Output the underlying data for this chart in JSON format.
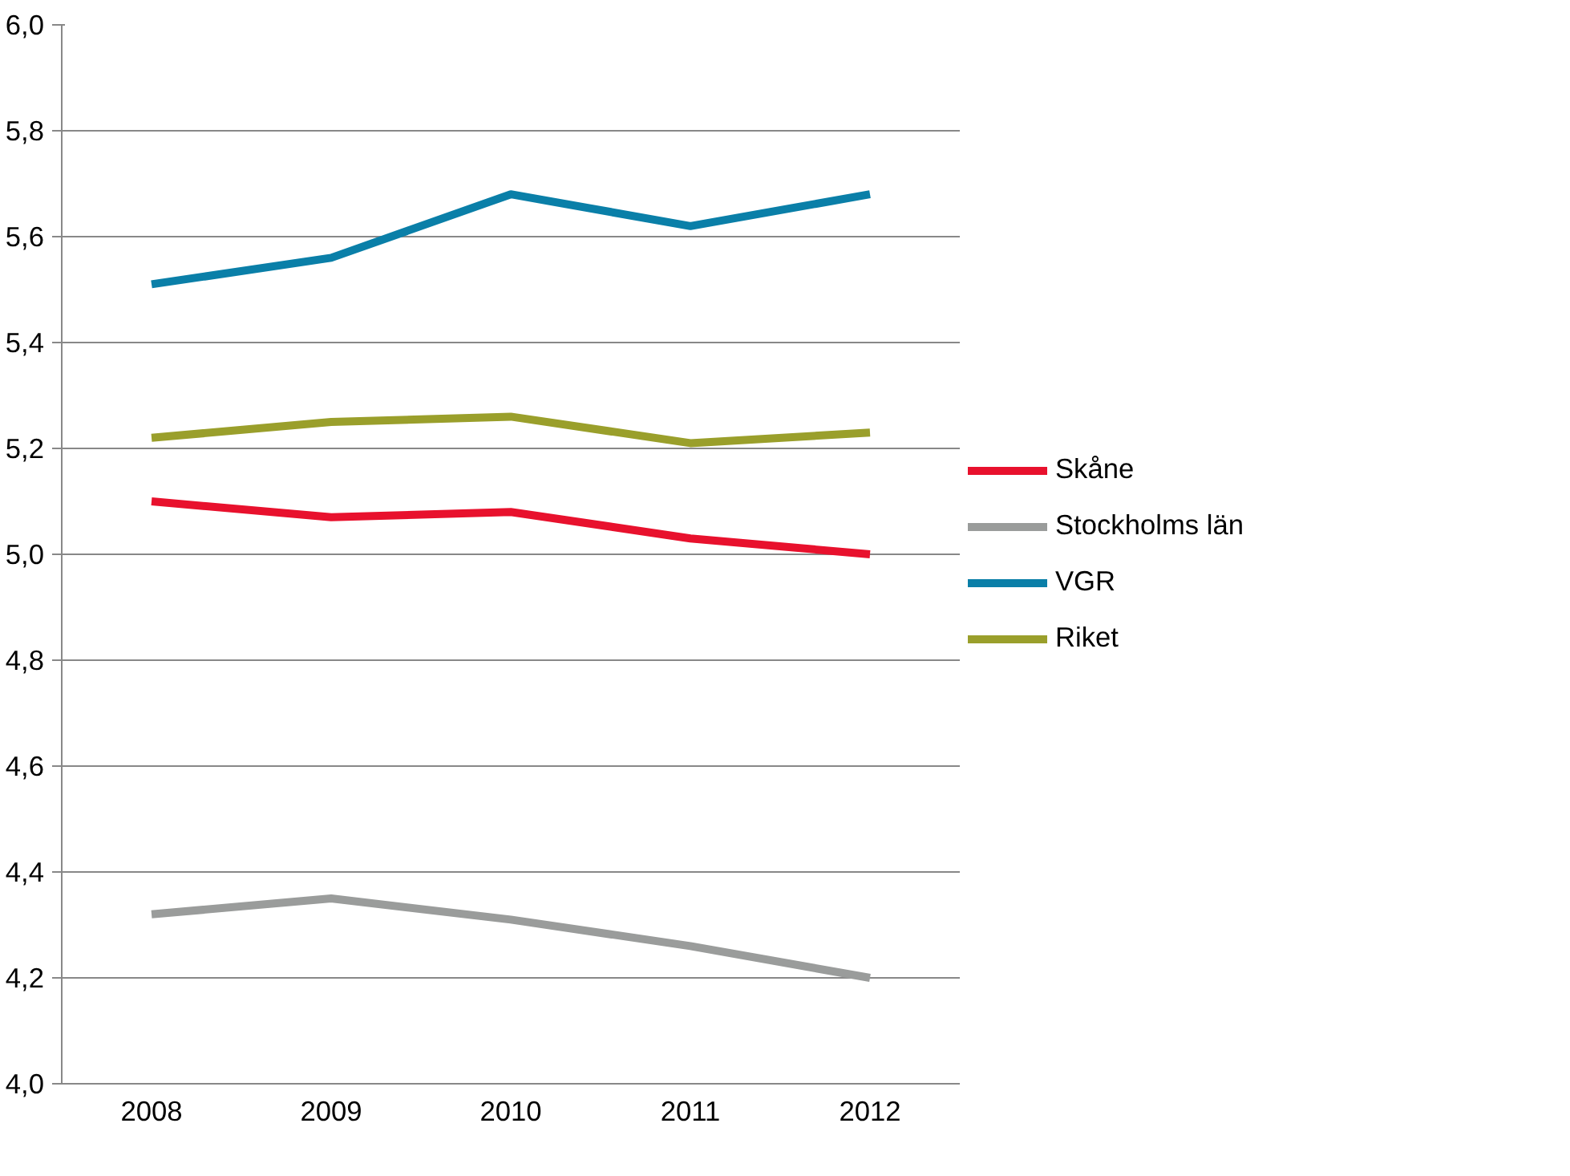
{
  "chart_data": {
    "type": "line",
    "categories": [
      "2008",
      "2009",
      "2010",
      "2011",
      "2012"
    ],
    "series": [
      {
        "name": "Skåne",
        "color": "#e8112d",
        "values": [
          5.1,
          5.07,
          5.08,
          5.03,
          5.0
        ]
      },
      {
        "name": "Stockholms län",
        "color": "#9a9c9b",
        "values": [
          4.32,
          4.35,
          4.31,
          4.26,
          4.2
        ]
      },
      {
        "name": "VGR",
        "color": "#0a7fa8",
        "values": [
          5.51,
          5.56,
          5.68,
          5.62,
          5.68
        ]
      },
      {
        "name": "Riket",
        "color": "#9a9f2b",
        "values": [
          5.22,
          5.25,
          5.26,
          5.21,
          5.23
        ]
      }
    ],
    "ylim": [
      4.0,
      6.0
    ],
    "yticks": [
      {
        "value": 4.0,
        "label": "4,0"
      },
      {
        "value": 4.2,
        "label": "4,2"
      },
      {
        "value": 4.4,
        "label": "4,4"
      },
      {
        "value": 4.6,
        "label": "4,6"
      },
      {
        "value": 4.8,
        "label": "4,8"
      },
      {
        "value": 5.0,
        "label": "5,0"
      },
      {
        "value": 5.2,
        "label": "5,2"
      },
      {
        "value": 5.4,
        "label": "5,4"
      },
      {
        "value": 5.6,
        "label": "5,6"
      },
      {
        "value": 5.8,
        "label": "5,8"
      },
      {
        "value": 6.0,
        "label": "6,0"
      }
    ],
    "grid": "y",
    "legend": "right",
    "marker": "none",
    "line_style": "solid"
  }
}
